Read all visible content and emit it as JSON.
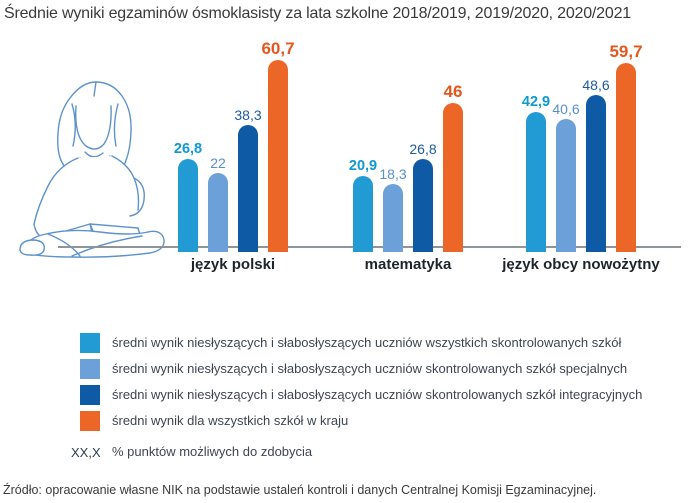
{
  "title": "Średnie wyniki egzaminów ósmoklasisty za lata szkolne 2018/2019, 2019/2020, 2020/2021",
  "chart_data": {
    "type": "bar",
    "categories": [
      "język polski",
      "matematyka",
      "język obcy nowożytny"
    ],
    "series": [
      {
        "name": "średni wynik niesłyszących i słabosłyszących uczniów wszystkich skontrolowanych szkół",
        "color": "#229bd5",
        "values": [
          26.8,
          20.9,
          42.9
        ],
        "labels": [
          "26,8",
          "20,9",
          "42,9"
        ]
      },
      {
        "name": "średni wynik niesłyszących i słabosłyszących uczniów skontrolowanych szkół specjalnych",
        "color": "#6ba1d8",
        "values": [
          22,
          18.3,
          40.6
        ],
        "labels": [
          "22",
          "18,3",
          "40,6"
        ]
      },
      {
        "name": "średni wynik niesłyszących i słabosłyszących uczniów skontrolowanych szkół  integracyjnych",
        "color": "#0f5aa4",
        "values": [
          38.3,
          26.8,
          48.6
        ],
        "labels": [
          "38,3",
          "26,8",
          "48,6"
        ]
      },
      {
        "name": "średni wynik dla wszystkich szkół w kraju",
        "color": "#ec6628",
        "values": [
          60.7,
          46,
          59.7
        ],
        "labels": [
          "60,7",
          "46",
          "59,7"
        ]
      }
    ],
    "unit_note": "XX,X % punktów możliwych do zdobycia",
    "ylim": [
      0,
      70
    ],
    "grid": false,
    "legend_position": "bottom"
  },
  "legend": {
    "note_prefix": "XX,X",
    "note_text": "% punktów możliwych do zdobycia"
  },
  "illustration": {
    "name": "girl-reading-book"
  },
  "source": "Źródło: opracowanie własne NIK na podstawie ustaleń kontroli i danych Centralnej Komisji Egzaminacyjnej.",
  "colors": {
    "series_cyan": "#229bd5",
    "series_light_blue": "#6ba1d8",
    "series_dark_blue": "#0f5aa4",
    "series_orange": "#ec6628",
    "value_cyan": "#0f98d6",
    "value_light_blue": "#5a8fca",
    "value_dark_blue": "#1d5b9d",
    "value_orange": "#e4571f",
    "baseline_gray": "#8f9499",
    "illustration_stroke": "#5d92cc",
    "text_dark": "#3a3a3a"
  }
}
